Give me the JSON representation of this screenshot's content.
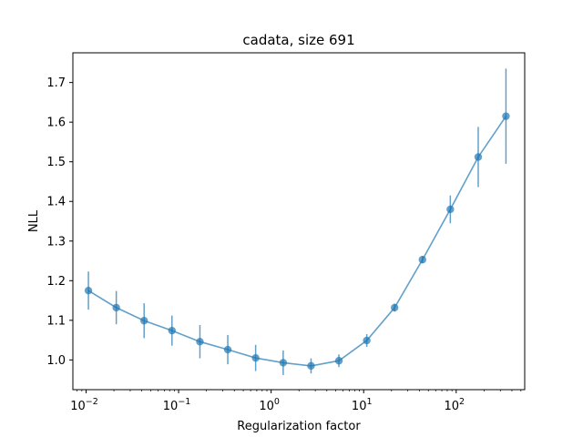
{
  "chart_data": {
    "type": "line",
    "title": "cadata, size 691",
    "xlabel": "Regularization factor",
    "ylabel": "NLL",
    "xscale": "log",
    "xlim": [
      0.0072,
      550
    ],
    "ylim": [
      0.925,
      1.775
    ],
    "x_ticks": [
      {
        "value": 0.01,
        "base": "10",
        "exp": "−2"
      },
      {
        "value": 0.1,
        "base": "10",
        "exp": "−1"
      },
      {
        "value": 1,
        "base": "10",
        "exp": "0"
      },
      {
        "value": 10,
        "base": "10",
        "exp": "1"
      },
      {
        "value": 100,
        "base": "10",
        "exp": "2"
      }
    ],
    "y_ticks": [
      "1.0",
      "1.1",
      "1.2",
      "1.3",
      "1.4",
      "1.5",
      "1.6",
      "1.7"
    ],
    "grid": false,
    "color": "#1f77b4",
    "series": [
      {
        "x": [
          0.0106,
          0.0212,
          0.0424,
          0.0848,
          0.17,
          0.34,
          0.68,
          1.35,
          2.7,
          5.4,
          10.8,
          21.6,
          43.2,
          86.4,
          173,
          345
        ],
        "y": [
          1.175,
          1.132,
          1.099,
          1.074,
          1.046,
          1.026,
          1.005,
          0.993,
          0.985,
          0.998,
          1.049,
          1.132,
          1.253,
          1.38,
          1.512,
          1.615
        ],
        "err": [
          0.048,
          0.042,
          0.044,
          0.038,
          0.042,
          0.037,
          0.033,
          0.031,
          0.019,
          0.016,
          0.016,
          0.01,
          0.009,
          0.035,
          0.076,
          0.12
        ]
      }
    ]
  }
}
